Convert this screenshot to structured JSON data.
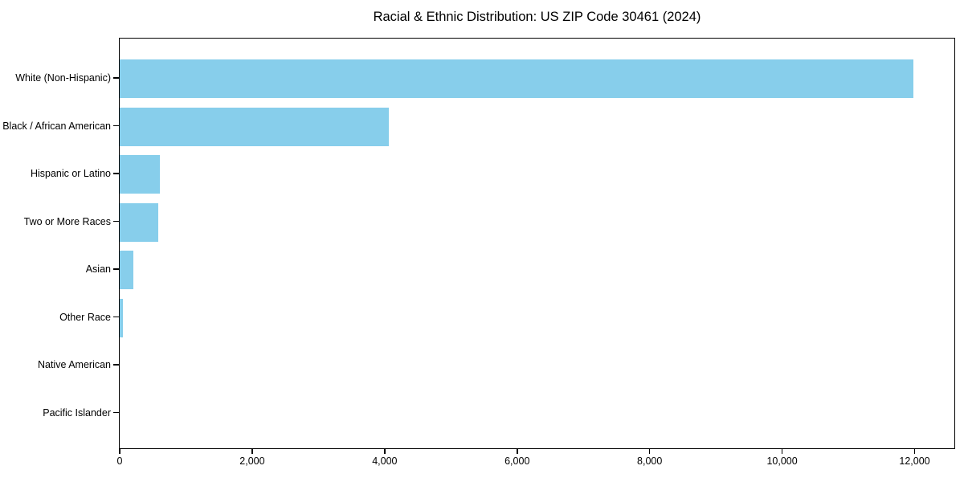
{
  "title": "Racial & Ethnic Distribution: US ZIP Code 30461 (2024)",
  "colors": {
    "bar": "#87CEEB",
    "spine": "#000000",
    "text": "#000000",
    "background": "#ffffff"
  },
  "chart_data": {
    "type": "bar",
    "orientation": "horizontal",
    "title": "Racial & Ethnic Distribution: US ZIP Code 30461 (2024)",
    "xlabel": "",
    "ylabel": "",
    "categories": [
      "White (Non-Hispanic)",
      "Black / African American",
      "Hispanic or Latino",
      "Two or More Races",
      "Asian",
      "Other Race",
      "Native American",
      "Pacific Islander"
    ],
    "values": [
      11980,
      4060,
      605,
      580,
      210,
      50,
      0,
      0
    ],
    "xlim": [
      0,
      12600
    ],
    "x_ticks": [
      0,
      2000,
      4000,
      6000,
      8000,
      10000,
      12000
    ],
    "x_tick_labels": [
      "0",
      "2,000",
      "4,000",
      "6,000",
      "8,000",
      "10,000",
      "12,000"
    ],
    "grid": false,
    "legend": false,
    "bar_color": "#87CEEB"
  }
}
